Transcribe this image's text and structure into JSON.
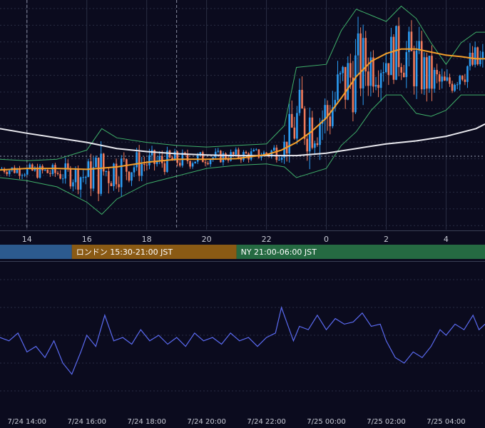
{
  "chart_data": {
    "type": "candlestick",
    "title": "",
    "colors": {
      "background": "#0b0b1e",
      "grid": "#2a2e44",
      "up_candle": "#2b9cf2",
      "down_candle": "#f07a5a",
      "ma_short": "#f5a02a",
      "ma_long": "#e8e8ee",
      "bollinger": "#3fb06a",
      "oscillator": "#5a6af0"
    },
    "top_x_ticks": [
      "14",
      "16",
      "18",
      "20",
      "22",
      "0",
      "2",
      "4"
    ],
    "bottom_x_ticks": [
      "7/24 14:00",
      "7/24 16:00",
      "7/24 18:00",
      "7/24 20:00",
      "7/24 22:00",
      "7/25 00:00",
      "7/25 02:00",
      "7/25 04:00"
    ],
    "session_bands": [
      {
        "name": "",
        "color": "#2c5a8e",
        "start_hour": 13.0,
        "end_hour": 15.5
      },
      {
        "name": "ロンドン 15:30-21:00 JST",
        "color": "#8a5a14",
        "start_hour": 15.5,
        "end_hour": 21.0
      },
      {
        "name": "NY 21:00-06:00 JST",
        "color": "#256a42",
        "start_hour": 21.0,
        "end_hour": 30.0
      }
    ],
    "x_range_hours": [
      13.1,
      29.3
    ],
    "ma_short": {
      "x": [
        13.1,
        14,
        15,
        16,
        17,
        18,
        19,
        20,
        21,
        22,
        22.5,
        23,
        23.5,
        24,
        24.5,
        25,
        25.5,
        26,
        26.5,
        27,
        27.5,
        28,
        28.5,
        29,
        29.3
      ],
      "y": [
        0.25,
        0.3,
        0.3,
        0.27,
        0.35,
        0.5,
        0.6,
        0.6,
        0.62,
        0.75,
        0.9,
        1.15,
        1.5,
        1.95,
        2.6,
        3.3,
        3.8,
        4.05,
        4.2,
        4.2,
        4.1,
        4.0,
        3.95,
        3.88,
        3.88
      ]
    },
    "ma_long": {
      "x": [
        13.1,
        14,
        15,
        16,
        17,
        18,
        19,
        20,
        21,
        22,
        23,
        24,
        25,
        26,
        27,
        28,
        29,
        29.3
      ],
      "y": [
        1.6,
        1.45,
        1.3,
        1.15,
        0.95,
        0.85,
        0.78,
        0.74,
        0.72,
        0.72,
        0.72,
        0.8,
        0.95,
        1.1,
        1.2,
        1.35,
        1.6,
        1.75
      ]
    },
    "boll_upper": {
      "x": [
        13.1,
        14,
        15,
        16,
        16.5,
        17,
        18,
        19,
        20,
        21,
        22,
        22.6,
        23,
        24,
        24.5,
        25,
        25.5,
        26,
        26.5,
        27,
        27.5,
        28,
        28.5,
        29,
        29.3
      ],
      "y": [
        0.6,
        0.55,
        0.6,
        0.9,
        1.6,
        1.3,
        1.15,
        1.05,
        1.0,
        1.05,
        1.1,
        1.7,
        3.6,
        3.7,
        4.8,
        5.5,
        5.3,
        5.1,
        5.6,
        5.2,
        4.4,
        3.7,
        4.4,
        4.75,
        4.75
      ]
    },
    "boll_lower": {
      "x": [
        13.1,
        14,
        15,
        16,
        16.5,
        17,
        18,
        19,
        20,
        21,
        22,
        22.6,
        23,
        24,
        24.5,
        25,
        25.5,
        26,
        26.5,
        27,
        27.5,
        28,
        28.5,
        29,
        29.3
      ],
      "y": [
        0.0,
        -0.1,
        -0.3,
        -0.8,
        -1.2,
        -0.7,
        -0.2,
        0.05,
        0.3,
        0.4,
        0.45,
        0.35,
        0.0,
        0.3,
        1.05,
        1.5,
        2.2,
        2.7,
        2.7,
        2.1,
        2.0,
        2.2,
        2.7,
        2.7,
        2.7
      ]
    },
    "price_ylim": [
      -1.7,
      5.8
    ],
    "reference_level": 0.7,
    "oscillator": {
      "x": [
        13.1,
        13.4,
        13.7,
        14.0,
        14.3,
        14.6,
        14.9,
        15.2,
        15.5,
        15.8,
        16.0,
        16.3,
        16.6,
        16.9,
        17.2,
        17.5,
        17.8,
        18.1,
        18.4,
        18.7,
        19.0,
        19.3,
        19.6,
        19.9,
        20.2,
        20.5,
        20.8,
        21.1,
        21.4,
        21.7,
        22.0,
        22.3,
        22.5,
        22.7,
        22.9,
        23.1,
        23.4,
        23.7,
        24.0,
        24.3,
        24.6,
        24.9,
        25.2,
        25.5,
        25.8,
        26.0,
        26.3,
        26.6,
        26.9,
        27.2,
        27.5,
        27.8,
        28.0,
        28.3,
        28.6,
        28.9,
        29.1,
        29.3
      ],
      "y": [
        48,
        45,
        52,
        35,
        40,
        30,
        45,
        25,
        15,
        35,
        50,
        40,
        68,
        45,
        48,
        42,
        55,
        45,
        50,
        42,
        48,
        40,
        52,
        45,
        48,
        42,
        52,
        45,
        48,
        40,
        48,
        52,
        75,
        60,
        45,
        58,
        55,
        68,
        55,
        65,
        60,
        62,
        70,
        58,
        60,
        45,
        30,
        25,
        35,
        30,
        40,
        55,
        50,
        60,
        55,
        68,
        55,
        60
      ]
    },
    "osc_ylim": [
      0,
      100
    ]
  }
}
